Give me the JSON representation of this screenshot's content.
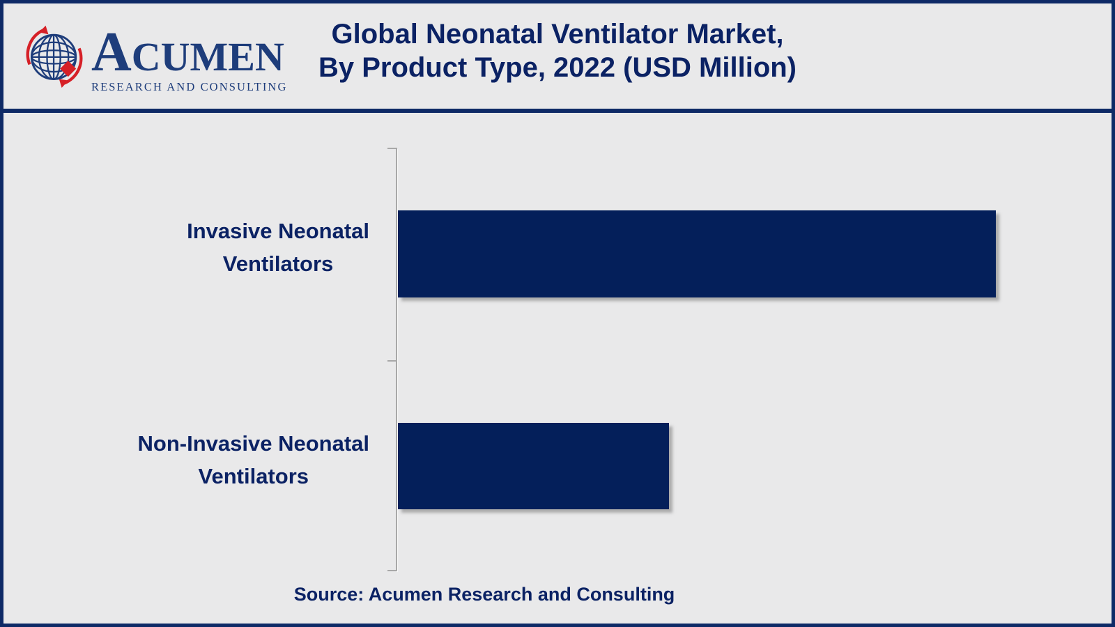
{
  "header": {
    "logo": {
      "brand": "ACUMEN",
      "brand_initial": "A",
      "brand_rest": "CUMEN",
      "tagline": "RESEARCH AND CONSULTING"
    },
    "title_line1": "Global Neonatal Ventilator Market,",
    "title_line2": "By Product Type, 2022 (USD Million)"
  },
  "chart_data": {
    "type": "bar",
    "orientation": "horizontal",
    "title": "Global Neonatal Ventilator Market, By Product Type, 2022 (USD Million)",
    "categories": [
      "Invasive Neonatal Ventilators",
      "Non-Invasive Neonatal Ventilators"
    ],
    "categories_wrapped": [
      [
        "Invasive Neonatal",
        "Ventilators"
      ],
      [
        "Non-Invasive Neonatal",
        "Ventilators"
      ]
    ],
    "series": [
      {
        "name": "2022",
        "values_pct_of_max": [
          100,
          45.3
        ]
      }
    ],
    "value_axis_visible": false,
    "data_labels_visible": false,
    "gridlines": false,
    "legend_position": "none",
    "bar_color": "#041f5a",
    "category_axis_color": "#a8a8a8"
  },
  "footer": {
    "source_text": "Source: Acumen Research and Consulting"
  },
  "colors": {
    "background": "#e9e9ea",
    "border_navy": "#0e2a66",
    "bar_navy": "#041f5a",
    "text_navy": "#0b2264",
    "logo_navy": "#1e3d7b",
    "logo_red": "#d62027",
    "axis_gray": "#a8a8a8"
  }
}
